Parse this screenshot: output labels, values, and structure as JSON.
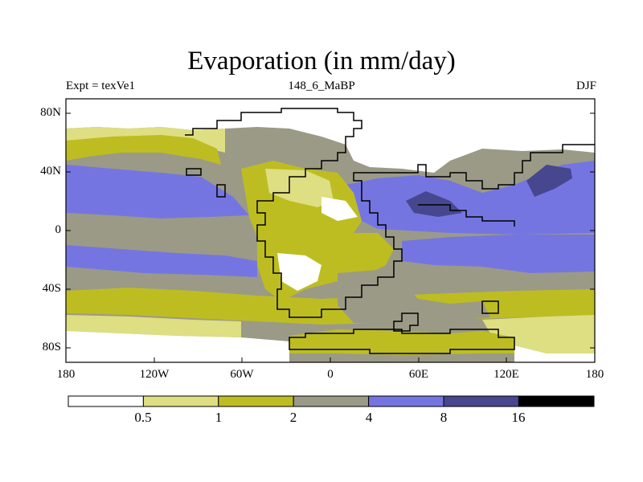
{
  "title": "Evaporation (in mm/day)",
  "subtitle": {
    "left": "Expt = texVe1",
    "center": "148_6_MaBP",
    "right": "DJF"
  },
  "axes": {
    "y_ticks": [
      "80N",
      "40N",
      "0",
      "40S",
      "80S"
    ],
    "x_ticks": [
      "180",
      "120W",
      "60W",
      "0",
      "60E",
      "120E",
      "180"
    ]
  },
  "colorbar": {
    "labels": [
      "0.5",
      "1",
      "2",
      "4",
      "8",
      "16"
    ],
    "colors": [
      "#ffffff",
      "#dede82",
      "#bdbd22",
      "#9b9a87",
      "#7575e2",
      "#47478f",
      "#000000"
    ]
  }
}
